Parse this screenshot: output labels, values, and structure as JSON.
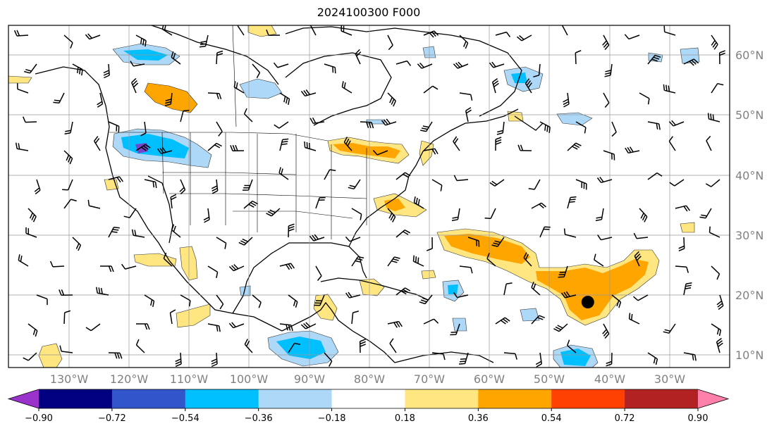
{
  "title": "2024100300 F000",
  "map": {
    "lat_labels": [
      "60°N",
      "50°N",
      "40°N",
      "30°N",
      "20°N",
      "10°N"
    ],
    "lat_values": [
      60,
      50,
      40,
      30,
      20,
      10
    ],
    "lon_labels": [
      "130°W",
      "120°W",
      "110°W",
      "100°W",
      "90°W",
      "80°W",
      "70°W",
      "60°W",
      "50°W",
      "40°W",
      "30°W"
    ],
    "lon_values": [
      -130,
      -120,
      -110,
      -100,
      -90,
      -80,
      -70,
      -60,
      -50,
      -40,
      -30
    ],
    "lat_range": [
      8,
      65
    ],
    "lon_range": [
      -141,
      -21
    ],
    "grid": true,
    "storm_marker": {
      "lon": -44.6,
      "lat": 18.9,
      "symbol": "filled-circle"
    }
  },
  "colorbar": {
    "levels": [
      "−0.90",
      "−0.72",
      "−0.54",
      "−0.36",
      "−0.18",
      "0.18",
      "0.36",
      "0.54",
      "0.72",
      "0.90"
    ],
    "colors": [
      "#9933cc",
      "#000080",
      "#3355cc",
      "#00bfff",
      "#add8f7",
      "#ffffff",
      "#ffe680",
      "#ffa500",
      "#ff4000",
      "#b22222",
      "#ff80aa"
    ],
    "extend": "both"
  },
  "colors": {
    "grid": "#999999",
    "coast": "#000000",
    "positive_light": "#ffe680",
    "positive_mid": "#ffa500",
    "negative_light": "#add8f7",
    "negative_mid": "#00bfff",
    "negative_deep": "#7744cc"
  }
}
